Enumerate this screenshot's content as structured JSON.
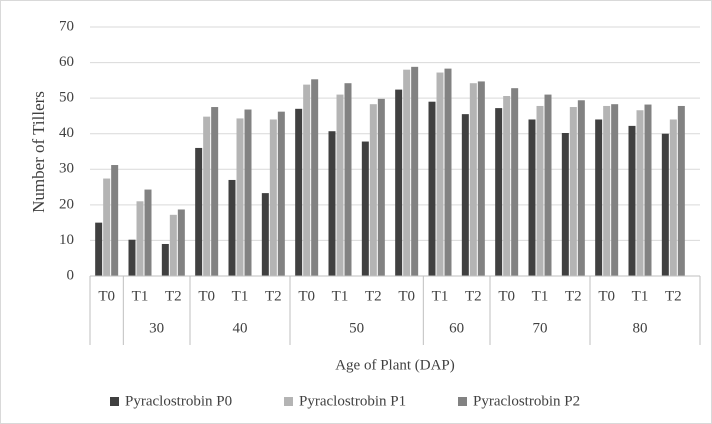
{
  "chart_data": {
    "type": "bar",
    "y_label": "Number of Tillers",
    "x_label": "Age of Plant (DAP)",
    "categories": [
      "T0",
      "T1",
      "T2",
      "T0",
      "T1",
      "T2",
      "T0",
      "T1",
      "T2",
      "T0",
      "T1",
      "T2",
      "T0",
      "T1",
      "T2",
      "T0",
      "T1",
      "T2"
    ],
    "category_groups": [
      null,
      "30",
      "30",
      "40",
      "40",
      "40",
      "50",
      "50",
      "50",
      "50",
      "60",
      "60",
      "70",
      "70",
      "70",
      "80",
      "80",
      "80"
    ],
    "series": [
      {
        "name": "Pyraclostrobin P0",
        "color": "#404040",
        "values": [
          15,
          10.2,
          9,
          36,
          27,
          23.3,
          47,
          40.7,
          37.8,
          52.4,
          49,
          45.5,
          47.2,
          44,
          40.2,
          44,
          42.2,
          40
        ]
      },
      {
        "name": "Pyraclostrobin P1",
        "color": "#b4b4b4",
        "values": [
          27.4,
          21,
          17.2,
          44.8,
          44.3,
          44,
          53.8,
          51,
          48.3,
          58,
          57.2,
          54.2,
          50.6,
          47.8,
          47.5,
          47.8,
          46.6,
          44
        ]
      },
      {
        "name": "Pyraclostrobin P2",
        "color": "#828282",
        "values": [
          31.2,
          24.3,
          18.7,
          47.5,
          46.8,
          46.2,
          55.3,
          54.2,
          49.8,
          58.8,
          58.3,
          54.7,
          52.8,
          51,
          49.4,
          48.3,
          48.2,
          47.8
        ]
      }
    ],
    "ylim": [
      0,
      70
    ],
    "yticks": [
      0,
      10,
      20,
      30,
      40,
      50,
      60,
      70
    ],
    "grid": true,
    "legend": "bottom"
  }
}
